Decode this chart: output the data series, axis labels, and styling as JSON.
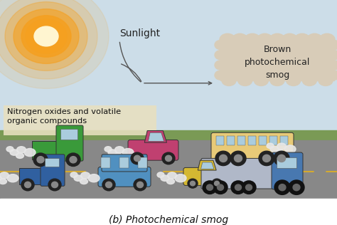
{
  "title": "(b) Photochemical smog",
  "sky_color": "#ccdde8",
  "ground_color": "#7a9a55",
  "road_color": "#888888",
  "road_line_color": "#d4aa30",
  "smog_color": "#d8ccb8",
  "smog_edge_color": "#c0b090",
  "sun_color1": "#f5a020",
  "sun_color2": "#ffd080",
  "sun_glow_color": "#f8c060",
  "sunlight_label": "Sunlight",
  "smog_label": "Brown\nphotochemical\nsmog",
  "nox_label": "Nitrogen oxides and volatile\norganic compounds",
  "nox_box_color": "#e8e0c0",
  "bg_color": "#ffffff",
  "title_fontsize": 10,
  "label_fontsize": 9
}
